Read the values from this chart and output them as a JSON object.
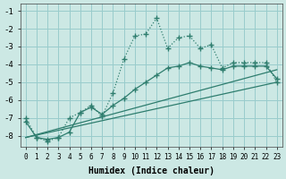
{
  "xlabel": "Humidex (Indice chaleur)",
  "background_color": "#cce8e4",
  "grid_color": "#99cccc",
  "line_color": "#2e7d6e",
  "xlim": [
    -0.5,
    23.5
  ],
  "ylim": [
    -8.6,
    -0.6
  ],
  "xticks": [
    0,
    1,
    2,
    3,
    4,
    5,
    6,
    7,
    8,
    9,
    10,
    11,
    12,
    13,
    14,
    15,
    16,
    17,
    18,
    19,
    20,
    21,
    22,
    23
  ],
  "yticks": [
    -8,
    -7,
    -6,
    -5,
    -4,
    -3,
    -2,
    -1
  ],
  "dotted_x": [
    0,
    1,
    2,
    3,
    4,
    5,
    6,
    7,
    8,
    9,
    10,
    11,
    12,
    13,
    14,
    15,
    16,
    17,
    18,
    19,
    20,
    21,
    22,
    23
  ],
  "dotted_y": [
    -7.0,
    -8.1,
    -8.3,
    -8.1,
    -7.0,
    -6.7,
    -6.3,
    -6.9,
    -5.6,
    -3.7,
    -2.4,
    -2.3,
    -1.4,
    -3.1,
    -2.5,
    -2.4,
    -3.1,
    -2.9,
    -4.2,
    -3.9,
    -3.9,
    -3.9,
    -3.9,
    -5.0
  ],
  "solid_marker_x": [
    0,
    1,
    2,
    3,
    4,
    5,
    6,
    7,
    8,
    9,
    10,
    11,
    12,
    13,
    14,
    15,
    16,
    17,
    18,
    19,
    20,
    21,
    22,
    23
  ],
  "solid_marker_y": [
    -7.2,
    -8.1,
    -8.2,
    -8.1,
    -7.8,
    -6.7,
    -6.4,
    -6.8,
    -6.3,
    -5.9,
    -5.4,
    -5.0,
    -4.6,
    -4.2,
    -4.1,
    -3.9,
    -4.1,
    -4.2,
    -4.3,
    -4.1,
    -4.1,
    -4.1,
    -4.1,
    -4.8
  ],
  "trend1_x": [
    0,
    23
  ],
  "trend1_y": [
    -8.1,
    -4.3
  ],
  "trend2_x": [
    0,
    23
  ],
  "trend2_y": [
    -8.1,
    -5.0
  ]
}
